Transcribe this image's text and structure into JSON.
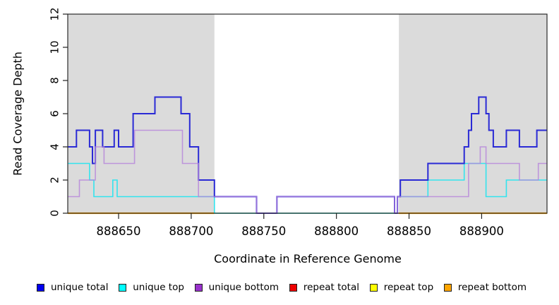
{
  "chart_data": {
    "type": "line",
    "subtype": "step",
    "title": "",
    "xlabel": "Coordinate in Reference Genome",
    "ylabel": "Read Coverage Depth",
    "xlim": [
      888615,
      888945
    ],
    "ylim": [
      0,
      12
    ],
    "x_ticks": [
      888650,
      888700,
      888750,
      888800,
      888850,
      888900
    ],
    "y_ticks": [
      0,
      2,
      4,
      6,
      8,
      10,
      12
    ],
    "grid": false,
    "legend_position": "bottom",
    "plot_background": "#ffffff",
    "shaded_regions": [
      {
        "x0": 888615,
        "x1": 888716,
        "color": "#dbdbdb"
      },
      {
        "x0": 888843,
        "x1": 888945,
        "color": "#dbdbdb"
      }
    ],
    "baseline_segments": [
      {
        "name": "white-region-zero-line",
        "color": "#74c476",
        "width": 1.5,
        "steps": [
          [
            888716,
            0
          ]
        ],
        "end": 888843
      }
    ],
    "series": [
      {
        "name": "unique total",
        "color": "#2a2ad5",
        "legend_color": "#0000ee",
        "width": 2,
        "z": 5,
        "opacity": 1,
        "segments": [
          {
            "steps": [
              [
                888615,
                4
              ],
              [
                888621,
                5
              ],
              [
                888630,
                4
              ],
              [
                888632,
                3
              ],
              [
                888634,
                5
              ],
              [
                888639,
                4
              ],
              [
                888647,
                5
              ],
              [
                888650,
                4
              ],
              [
                888660,
                6
              ],
              [
                888675,
                7
              ],
              [
                888693,
                6
              ],
              [
                888699,
                4
              ],
              [
                888705,
                2
              ],
              [
                888716,
                1
              ],
              [
                888745,
                0
              ],
              [
                888759,
                1
              ],
              [
                888840,
                0
              ],
              [
                888842,
                1
              ],
              [
                888844,
                2
              ],
              [
                888863,
                3
              ],
              [
                888888,
                4
              ],
              [
                888891,
                5
              ],
              [
                888893,
                6
              ],
              [
                888898,
                7
              ],
              [
                888903,
                6
              ],
              [
                888905,
                5
              ],
              [
                888908,
                4
              ],
              [
                888917,
                5
              ],
              [
                888926,
                4
              ],
              [
                888938,
                5
              ]
            ],
            "end": 888945
          }
        ]
      },
      {
        "name": "unique top",
        "color": "#33e4ee",
        "legend_color": "#00ffff",
        "width": 1.6,
        "z": 4,
        "opacity": 1,
        "segments": [
          {
            "steps": [
              [
                888615,
                3
              ],
              [
                888630,
                2
              ],
              [
                888633,
                1
              ],
              [
                888646,
                2
              ],
              [
                888649,
                1
              ],
              [
                888716,
                0
              ],
              [
                888842,
                1
              ],
              [
                888863,
                2
              ],
              [
                888888,
                3
              ],
              [
                888903,
                1
              ],
              [
                888917,
                2
              ]
            ],
            "end": 888945
          }
        ]
      },
      {
        "name": "unique bottom",
        "color": "#b583db",
        "legend_color": "#9932cc",
        "width": 1.6,
        "z": 6,
        "opacity": 0.8,
        "segments": [
          {
            "steps": [
              [
                888615,
                1
              ],
              [
                888623,
                2
              ],
              [
                888634,
                4
              ],
              [
                888640,
                3
              ],
              [
                888661,
                5
              ],
              [
                888694,
                3
              ],
              [
                888705,
                1
              ],
              [
                888745,
                0
              ],
              [
                888759,
                1
              ],
              [
                888840,
                0
              ],
              [
                888842,
                1
              ],
              [
                888891,
                3
              ],
              [
                888899,
                4
              ],
              [
                888903,
                3
              ],
              [
                888926,
                2
              ],
              [
                888939,
                3
              ]
            ],
            "end": 888945
          }
        ]
      },
      {
        "name": "repeat total",
        "color": "#dd0000",
        "legend_color": "#ee0000",
        "width": 1.4,
        "z": 1,
        "opacity": 1,
        "segments": [
          {
            "steps": [
              [
                888615,
                0
              ]
            ],
            "end": 888716
          },
          {
            "steps": [
              [
                888843,
                0
              ]
            ],
            "end": 888945
          }
        ]
      },
      {
        "name": "repeat top",
        "color": "#ffff00",
        "legend_color": "#ffff00",
        "width": 1.4,
        "z": 2,
        "opacity": 1,
        "segments": [
          {
            "steps": [
              [
                888615,
                0
              ]
            ],
            "end": 888716
          },
          {
            "steps": [
              [
                888843,
                0
              ]
            ],
            "end": 888945
          }
        ]
      },
      {
        "name": "repeat bottom",
        "color": "#ffa500",
        "legend_color": "#ffa500",
        "width": 2.2,
        "z": 3,
        "opacity": 1,
        "segments": [
          {
            "steps": [
              [
                888615,
                0
              ]
            ],
            "end": 888716
          },
          {
            "steps": [
              [
                888843,
                0
              ]
            ],
            "end": 888945
          }
        ]
      }
    ]
  }
}
